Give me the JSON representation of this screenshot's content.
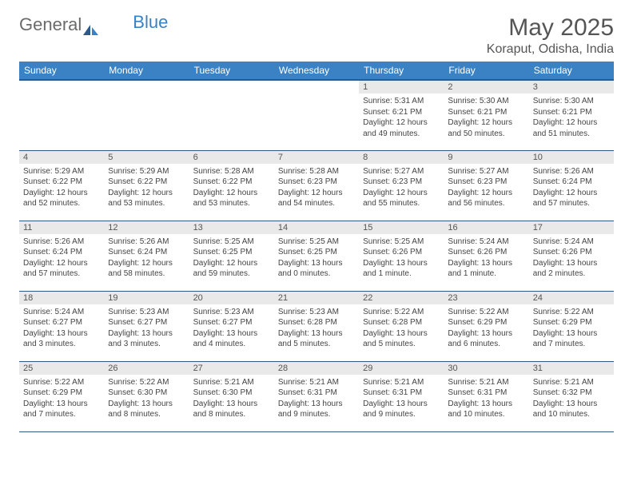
{
  "logo": {
    "text1": "General",
    "text2": "Blue"
  },
  "title": "May 2025",
  "location": "Koraput, Odisha, India",
  "colors": {
    "header_bg": "#3b82c4",
    "header_text": "#ffffff",
    "daynum_bg": "#e9e9e9",
    "border": "#2d5a8a",
    "body_text": "#444444"
  },
  "weekdays": [
    "Sunday",
    "Monday",
    "Tuesday",
    "Wednesday",
    "Thursday",
    "Friday",
    "Saturday"
  ],
  "weeks": [
    [
      null,
      null,
      null,
      null,
      {
        "n": "1",
        "sr": "5:31 AM",
        "ss": "6:21 PM",
        "dl": "12 hours and 49 minutes."
      },
      {
        "n": "2",
        "sr": "5:30 AM",
        "ss": "6:21 PM",
        "dl": "12 hours and 50 minutes."
      },
      {
        "n": "3",
        "sr": "5:30 AM",
        "ss": "6:21 PM",
        "dl": "12 hours and 51 minutes."
      }
    ],
    [
      {
        "n": "4",
        "sr": "5:29 AM",
        "ss": "6:22 PM",
        "dl": "12 hours and 52 minutes."
      },
      {
        "n": "5",
        "sr": "5:29 AM",
        "ss": "6:22 PM",
        "dl": "12 hours and 53 minutes."
      },
      {
        "n": "6",
        "sr": "5:28 AM",
        "ss": "6:22 PM",
        "dl": "12 hours and 53 minutes."
      },
      {
        "n": "7",
        "sr": "5:28 AM",
        "ss": "6:23 PM",
        "dl": "12 hours and 54 minutes."
      },
      {
        "n": "8",
        "sr": "5:27 AM",
        "ss": "6:23 PM",
        "dl": "12 hours and 55 minutes."
      },
      {
        "n": "9",
        "sr": "5:27 AM",
        "ss": "6:23 PM",
        "dl": "12 hours and 56 minutes."
      },
      {
        "n": "10",
        "sr": "5:26 AM",
        "ss": "6:24 PM",
        "dl": "12 hours and 57 minutes."
      }
    ],
    [
      {
        "n": "11",
        "sr": "5:26 AM",
        "ss": "6:24 PM",
        "dl": "12 hours and 57 minutes."
      },
      {
        "n": "12",
        "sr": "5:26 AM",
        "ss": "6:24 PM",
        "dl": "12 hours and 58 minutes."
      },
      {
        "n": "13",
        "sr": "5:25 AM",
        "ss": "6:25 PM",
        "dl": "12 hours and 59 minutes."
      },
      {
        "n": "14",
        "sr": "5:25 AM",
        "ss": "6:25 PM",
        "dl": "13 hours and 0 minutes."
      },
      {
        "n": "15",
        "sr": "5:25 AM",
        "ss": "6:26 PM",
        "dl": "13 hours and 1 minute."
      },
      {
        "n": "16",
        "sr": "5:24 AM",
        "ss": "6:26 PM",
        "dl": "13 hours and 1 minute."
      },
      {
        "n": "17",
        "sr": "5:24 AM",
        "ss": "6:26 PM",
        "dl": "13 hours and 2 minutes."
      }
    ],
    [
      {
        "n": "18",
        "sr": "5:24 AM",
        "ss": "6:27 PM",
        "dl": "13 hours and 3 minutes."
      },
      {
        "n": "19",
        "sr": "5:23 AM",
        "ss": "6:27 PM",
        "dl": "13 hours and 3 minutes."
      },
      {
        "n": "20",
        "sr": "5:23 AM",
        "ss": "6:27 PM",
        "dl": "13 hours and 4 minutes."
      },
      {
        "n": "21",
        "sr": "5:23 AM",
        "ss": "6:28 PM",
        "dl": "13 hours and 5 minutes."
      },
      {
        "n": "22",
        "sr": "5:22 AM",
        "ss": "6:28 PM",
        "dl": "13 hours and 5 minutes."
      },
      {
        "n": "23",
        "sr": "5:22 AM",
        "ss": "6:29 PM",
        "dl": "13 hours and 6 minutes."
      },
      {
        "n": "24",
        "sr": "5:22 AM",
        "ss": "6:29 PM",
        "dl": "13 hours and 7 minutes."
      }
    ],
    [
      {
        "n": "25",
        "sr": "5:22 AM",
        "ss": "6:29 PM",
        "dl": "13 hours and 7 minutes."
      },
      {
        "n": "26",
        "sr": "5:22 AM",
        "ss": "6:30 PM",
        "dl": "13 hours and 8 minutes."
      },
      {
        "n": "27",
        "sr": "5:21 AM",
        "ss": "6:30 PM",
        "dl": "13 hours and 8 minutes."
      },
      {
        "n": "28",
        "sr": "5:21 AM",
        "ss": "6:31 PM",
        "dl": "13 hours and 9 minutes."
      },
      {
        "n": "29",
        "sr": "5:21 AM",
        "ss": "6:31 PM",
        "dl": "13 hours and 9 minutes."
      },
      {
        "n": "30",
        "sr": "5:21 AM",
        "ss": "6:31 PM",
        "dl": "13 hours and 10 minutes."
      },
      {
        "n": "31",
        "sr": "5:21 AM",
        "ss": "6:32 PM",
        "dl": "13 hours and 10 minutes."
      }
    ]
  ],
  "labels": {
    "sunrise": "Sunrise:",
    "sunset": "Sunset:",
    "daylight": "Daylight:"
  }
}
